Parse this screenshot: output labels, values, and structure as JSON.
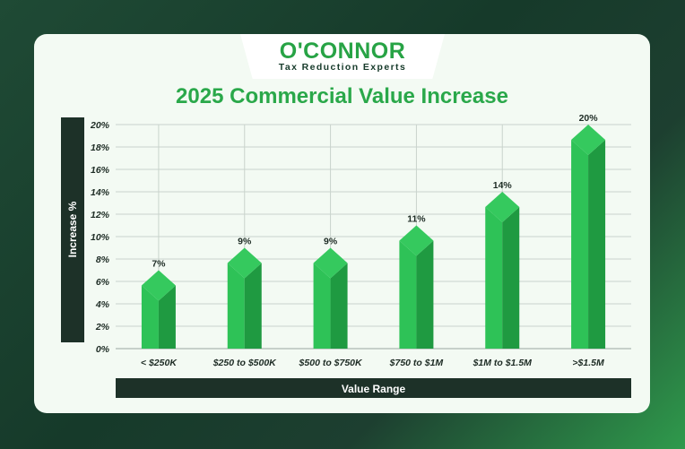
{
  "brand": {
    "name": "O'CONNOR",
    "tagline": "Tax Reduction Experts"
  },
  "colors": {
    "accent": "#2aa84a",
    "bar_light": "#2ec257",
    "bar_dark": "#1f9a41",
    "bar_top": "#35c95e",
    "label_bar": "#1d3128"
  },
  "chart_data": {
    "type": "bar",
    "title": "2025 Commercial Value Increase",
    "xlabel": "Value Range",
    "ylabel": "Increase %",
    "categories": [
      "< $250K",
      "$250 to $500K",
      "$500 to $750K",
      "$750 to $1M",
      "$1M to $1.5M",
      ">$1.5M"
    ],
    "values": [
      7,
      9,
      9,
      11,
      14,
      20
    ],
    "value_labels": [
      "7%",
      "9%",
      "9%",
      "11%",
      "14%",
      "20%"
    ],
    "ylim": [
      0,
      20
    ],
    "yticks": [
      "0%",
      "2%",
      "4%",
      "6%",
      "8%",
      "10%",
      "12%",
      "14%",
      "16%",
      "18%",
      "20%"
    ],
    "grid": true,
    "legend": "none"
  }
}
